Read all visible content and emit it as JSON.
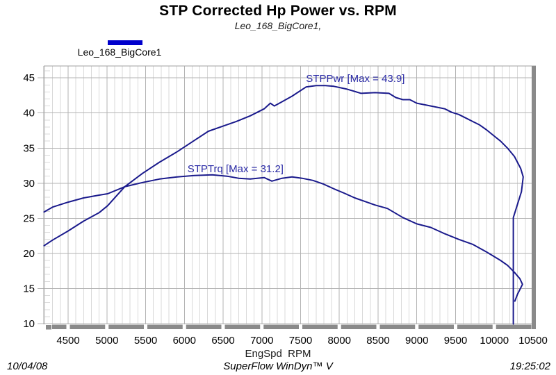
{
  "header": {
    "title": "STP Corrected Hp Power vs. RPM",
    "subtitle": "Leo_168_BigCore1,"
  },
  "legend": {
    "label": "Leo_168_BigCore1",
    "swatch_color": "#0000cc"
  },
  "footer": {
    "date": "10/04/08",
    "software": "SuperFlow WinDyn™ V",
    "time": "19:25:02"
  },
  "colors": {
    "curve": "#1a1a8c",
    "annotation": "#2b2ba6",
    "grid_minor": "#d9d9d9",
    "grid_major": "#b3b3b3",
    "frame": "#a0a0a0",
    "axis_bar": "#8a8a8a",
    "tick_text": "#000000"
  },
  "chart_data": {
    "type": "line",
    "title": "STP Corrected Hp Power vs. RPM",
    "subtitle": "Leo_168_BigCore1,",
    "xlabel": "EngSpd  RPM",
    "ylabel": "",
    "xlim": [
      4186,
      10527
    ],
    "ylim": [
      9.9,
      46.7
    ],
    "x_ticks": [
      4500,
      5000,
      5500,
      6000,
      6500,
      7000,
      7500,
      8000,
      8500,
      9000,
      9500,
      10000,
      10500
    ],
    "y_ticks": [
      10,
      15,
      20,
      25,
      30,
      35,
      40,
      45
    ],
    "x_minor_step": 100,
    "y_minor_step": 1,
    "grid": "on",
    "legend_position": "top-left",
    "series": [
      {
        "name": "STPPwr",
        "max": 43.9,
        "points": [
          [
            4190,
            21.1
          ],
          [
            4300,
            21.9
          ],
          [
            4500,
            23.2
          ],
          [
            4700,
            24.6
          ],
          [
            4900,
            25.8
          ],
          [
            5010,
            26.8
          ],
          [
            5230,
            29.5
          ],
          [
            5460,
            31.4
          ],
          [
            5680,
            33.0
          ],
          [
            5910,
            34.5
          ],
          [
            6130,
            36.1
          ],
          [
            6310,
            37.4
          ],
          [
            6490,
            38.1
          ],
          [
            6670,
            38.8
          ],
          [
            6850,
            39.6
          ],
          [
            7030,
            40.6
          ],
          [
            7110,
            41.4
          ],
          [
            7160,
            41.0
          ],
          [
            7210,
            41.3
          ],
          [
            7390,
            42.4
          ],
          [
            7570,
            43.7
          ],
          [
            7700,
            43.9
          ],
          [
            7820,
            43.9
          ],
          [
            7930,
            43.8
          ],
          [
            8100,
            43.4
          ],
          [
            8280,
            42.8
          ],
          [
            8460,
            42.9
          ],
          [
            8640,
            42.8
          ],
          [
            8730,
            42.2
          ],
          [
            8820,
            41.9
          ],
          [
            8910,
            41.9
          ],
          [
            9000,
            41.4
          ],
          [
            9090,
            41.2
          ],
          [
            9180,
            41.0
          ],
          [
            9360,
            40.6
          ],
          [
            9450,
            40.1
          ],
          [
            9540,
            39.8
          ],
          [
            9630,
            39.3
          ],
          [
            9720,
            38.8
          ],
          [
            9810,
            38.3
          ],
          [
            9900,
            37.6
          ],
          [
            9990,
            36.8
          ],
          [
            10080,
            36.0
          ],
          [
            10170,
            35.0
          ],
          [
            10260,
            33.8
          ],
          [
            10340,
            32.1
          ],
          [
            10373,
            30.9
          ],
          [
            10350,
            28.8
          ],
          [
            10245,
            25.1
          ],
          [
            10245,
            9.95
          ]
        ]
      },
      {
        "name": "STPTrq",
        "max": 31.2,
        "points": [
          [
            4190,
            25.9
          ],
          [
            4300,
            26.6
          ],
          [
            4500,
            27.3
          ],
          [
            4700,
            27.9
          ],
          [
            4900,
            28.3
          ],
          [
            5010,
            28.5
          ],
          [
            5230,
            29.5
          ],
          [
            5460,
            30.1
          ],
          [
            5680,
            30.6
          ],
          [
            5910,
            30.9
          ],
          [
            6130,
            31.1
          ],
          [
            6360,
            31.2
          ],
          [
            6550,
            31.0
          ],
          [
            6700,
            30.7
          ],
          [
            6850,
            30.6
          ],
          [
            7030,
            30.8
          ],
          [
            7130,
            30.3
          ],
          [
            7260,
            30.7
          ],
          [
            7390,
            30.9
          ],
          [
            7520,
            30.7
          ],
          [
            7660,
            30.4
          ],
          [
            7790,
            29.9
          ],
          [
            7930,
            29.2
          ],
          [
            8060,
            28.6
          ],
          [
            8200,
            27.9
          ],
          [
            8330,
            27.4
          ],
          [
            8460,
            26.9
          ],
          [
            8620,
            26.4
          ],
          [
            8820,
            25.1
          ],
          [
            9000,
            24.2
          ],
          [
            9180,
            23.7
          ],
          [
            9360,
            22.8
          ],
          [
            9540,
            22.0
          ],
          [
            9720,
            21.3
          ],
          [
            9900,
            20.2
          ],
          [
            10080,
            19.0
          ],
          [
            10170,
            18.3
          ],
          [
            10260,
            17.3
          ],
          [
            10330,
            16.4
          ],
          [
            10364,
            15.6
          ],
          [
            10300,
            14.2
          ],
          [
            10265,
            13.2
          ]
        ]
      }
    ],
    "annotations": [
      {
        "text": "STPPwr [Max = 43.9]",
        "rpm": 7570,
        "value": 45.7
      },
      {
        "text": "STPTrq [Max = 31.2]",
        "rpm": 6040,
        "value": 32.9
      }
    ]
  }
}
